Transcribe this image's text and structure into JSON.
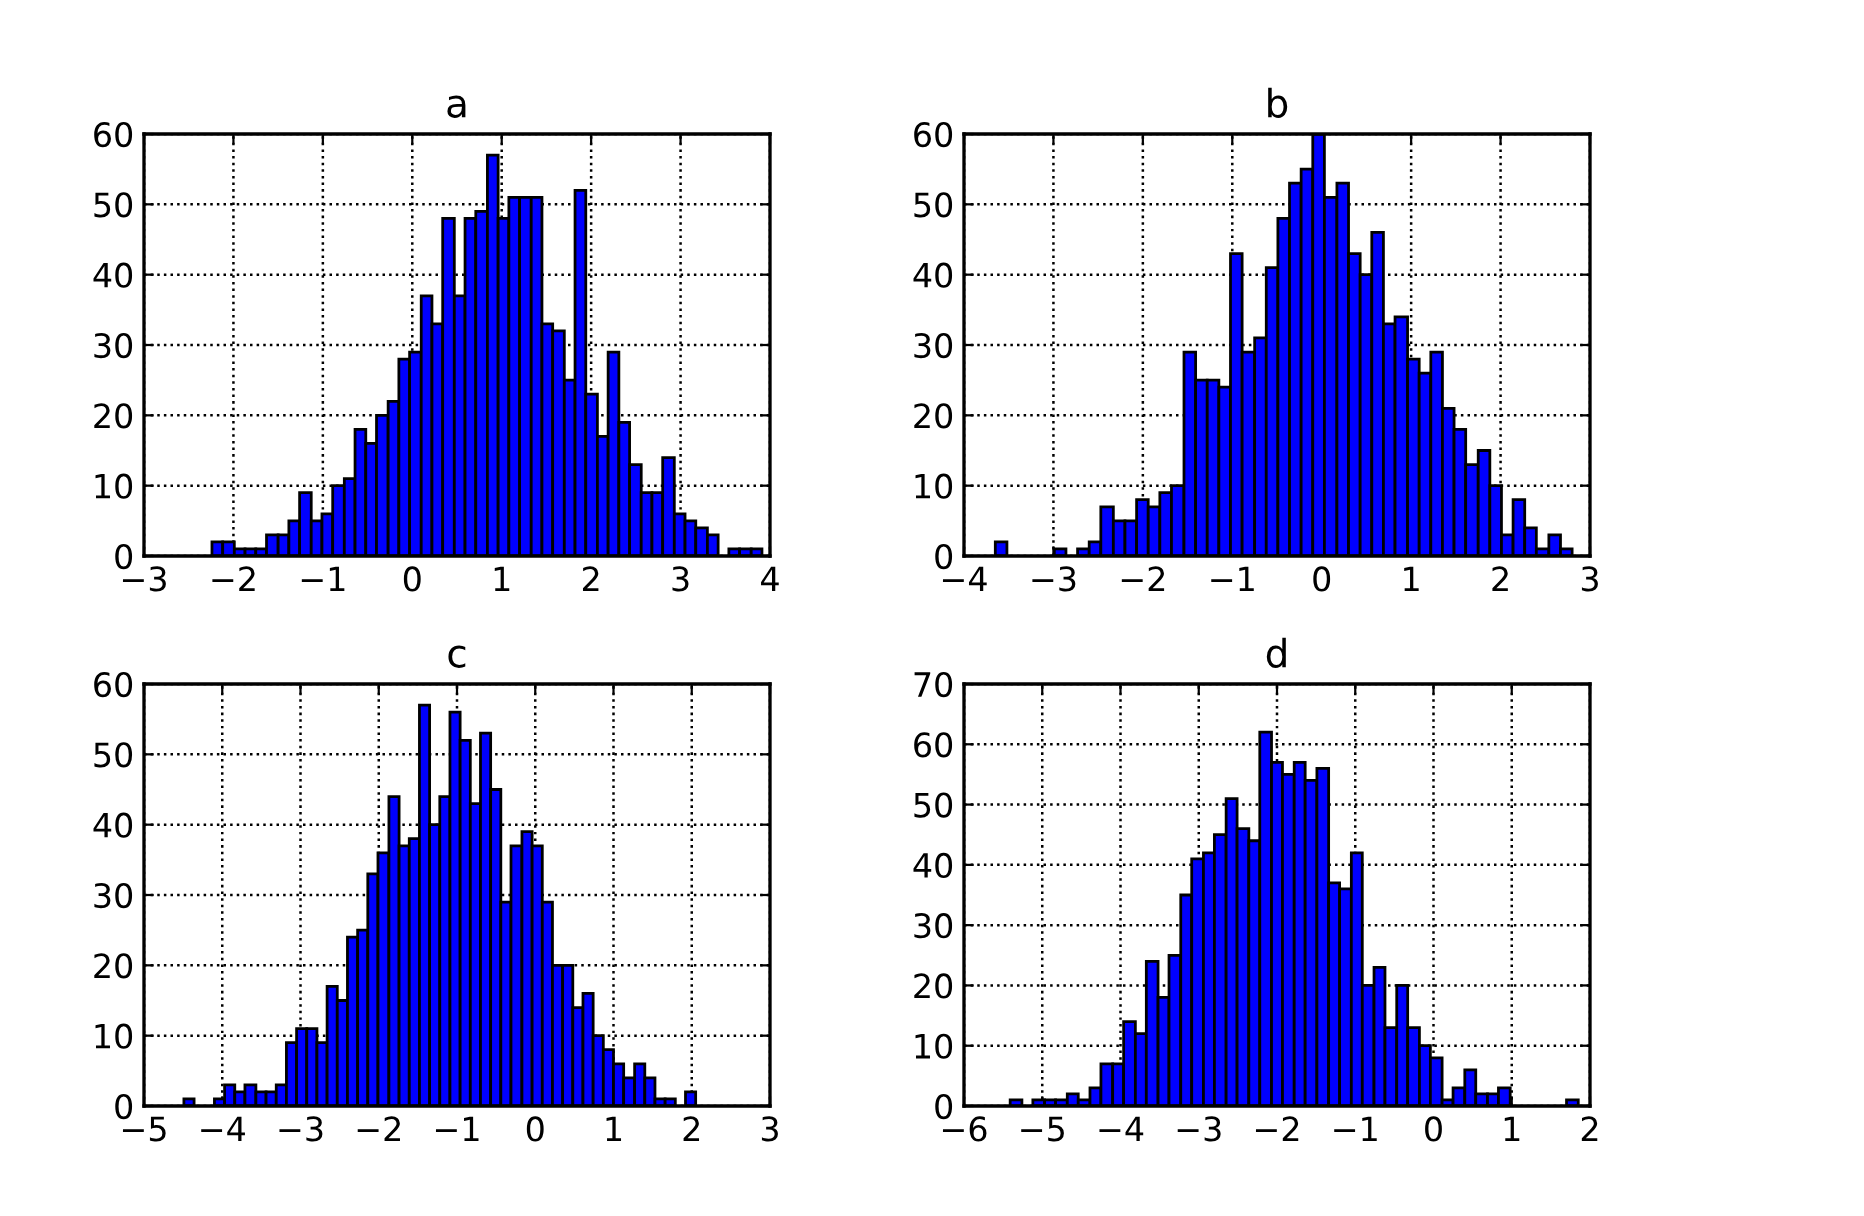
{
  "chart_data": [
    {
      "type": "histogram",
      "title": "a",
      "color": "#0000ff",
      "grid": true,
      "xlim": [
        -3,
        4
      ],
      "xticks": [
        -3,
        -2,
        -1,
        0,
        1,
        2,
        3,
        4
      ],
      "ylim": [
        0,
        60
      ],
      "yticks": [
        0,
        10,
        20,
        30,
        40,
        50,
        60
      ],
      "bins": [
        -2.24,
        -2.12,
        -1.99,
        -1.87,
        -1.75,
        -1.63,
        -1.5,
        -1.38,
        -1.26,
        -1.13,
        -1.01,
        -0.89,
        -0.76,
        -0.64,
        -0.52,
        -0.4,
        -0.27,
        -0.15,
        -0.03,
        0.1,
        0.22,
        0.34,
        0.47,
        0.59,
        0.71,
        0.84,
        0.96,
        1.08,
        1.2,
        1.33,
        1.45,
        1.57,
        1.7,
        1.82,
        1.94,
        2.07,
        2.19,
        2.31,
        2.43,
        2.56,
        2.68,
        2.8,
        2.93,
        3.05,
        3.17,
        3.3,
        3.42,
        3.54,
        3.66,
        3.79,
        3.91
      ],
      "values": [
        2,
        2,
        1,
        1,
        1,
        3,
        3,
        5,
        9,
        5,
        6,
        10,
        11,
        18,
        16,
        20,
        22,
        28,
        29,
        37,
        33,
        48,
        37,
        48,
        49,
        57,
        48,
        51,
        51,
        51,
        33,
        32,
        25,
        52,
        23,
        17,
        29,
        19,
        13,
        9,
        9,
        14,
        6,
        5,
        4,
        3,
        0,
        1,
        1,
        1
      ]
    },
    {
      "type": "histogram",
      "title": "b",
      "color": "#0000ff",
      "grid": true,
      "xlim": [
        -4,
        3
      ],
      "xticks": [
        -4,
        -3,
        -2,
        -1,
        0,
        1,
        2,
        3
      ],
      "ylim": [
        0,
        60
      ],
      "yticks": [
        0,
        10,
        20,
        30,
        40,
        50,
        60
      ],
      "bins": [
        -3.65,
        -3.52,
        -2.99,
        -2.86,
        -2.73,
        -2.6,
        -2.47,
        -2.33,
        -2.2,
        -2.07,
        -1.94,
        -1.81,
        -1.68,
        -1.54,
        -1.41,
        -1.28,
        -1.15,
        -1.02,
        -0.89,
        -0.75,
        -0.62,
        -0.49,
        -0.36,
        -0.23,
        -0.1,
        0.03,
        0.17,
        0.3,
        0.43,
        0.56,
        0.69,
        0.82,
        0.96,
        1.09,
        1.22,
        1.35,
        1.48,
        1.61,
        1.75,
        1.88,
        2.01,
        2.14,
        2.27,
        2.4,
        2.54,
        2.67,
        2.8
      ],
      "values": [
        2,
        0,
        1,
        0,
        1,
        2,
        7,
        5,
        5,
        8,
        7,
        9,
        10,
        29,
        25,
        25,
        24,
        43,
        29,
        31,
        41,
        48,
        53,
        55,
        60,
        51,
        53,
        43,
        40,
        46,
        33,
        34,
        28,
        26,
        29,
        21,
        18,
        13,
        15,
        10,
        3,
        8,
        4,
        1,
        3,
        1
      ]
    },
    {
      "type": "histogram",
      "title": "c",
      "color": "#0000ff",
      "grid": true,
      "xlim": [
        -5,
        3
      ],
      "xticks": [
        -5,
        -4,
        -3,
        -2,
        -1,
        0,
        1,
        2,
        3
      ],
      "ylim": [
        0,
        60
      ],
      "yticks": [
        0,
        10,
        20,
        30,
        40,
        50,
        60
      ],
      "bins": [
        -4.49,
        -4.36,
        -4.1,
        -3.97,
        -3.84,
        -3.71,
        -3.57,
        -3.44,
        -3.31,
        -3.18,
        -3.05,
        -2.92,
        -2.79,
        -2.66,
        -2.53,
        -2.4,
        -2.27,
        -2.14,
        -2.01,
        -1.87,
        -1.74,
        -1.61,
        -1.48,
        -1.35,
        -1.22,
        -1.09,
        -0.96,
        -0.83,
        -0.7,
        -0.57,
        -0.44,
        -0.31,
        -0.17,
        -0.04,
        0.09,
        0.22,
        0.35,
        0.48,
        0.61,
        0.74,
        0.87,
        1.0,
        1.13,
        1.27,
        1.4,
        1.53,
        1.66,
        1.79,
        1.92,
        2.05
      ],
      "values": [
        1,
        0,
        1,
        3,
        2,
        3,
        2,
        2,
        3,
        9,
        11,
        11,
        9,
        17,
        15,
        24,
        25,
        33,
        36,
        44,
        37,
        38,
        57,
        40,
        44,
        56,
        52,
        43,
        53,
        45,
        29,
        37,
        39,
        37,
        29,
        20,
        20,
        14,
        16,
        10,
        8,
        6,
        4,
        6,
        4,
        1,
        1,
        0,
        2
      ]
    },
    {
      "type": "histogram",
      "title": "d",
      "color": "#0000ff",
      "grid": true,
      "xlim": [
        -6,
        2
      ],
      "xticks": [
        -6,
        -5,
        -4,
        -3,
        -2,
        -1,
        0,
        1,
        2
      ],
      "ylim": [
        0,
        70
      ],
      "yticks": [
        0,
        10,
        20,
        30,
        40,
        50,
        60,
        70
      ],
      "bins": [
        -5.41,
        -5.26,
        -5.12,
        -4.97,
        -4.83,
        -4.68,
        -4.54,
        -4.39,
        -4.25,
        -4.1,
        -3.96,
        -3.81,
        -3.67,
        -3.52,
        -3.38,
        -3.23,
        -3.09,
        -2.94,
        -2.8,
        -2.65,
        -2.51,
        -2.36,
        -2.22,
        -2.07,
        -1.93,
        -1.78,
        -1.64,
        -1.49,
        -1.34,
        -1.2,
        -1.05,
        -0.91,
        -0.76,
        -0.62,
        -0.47,
        -0.33,
        -0.18,
        -0.04,
        0.11,
        0.25,
        0.4,
        0.54,
        0.69,
        0.83,
        0.98,
        1.7,
        1.85
      ],
      "values": [
        1,
        0,
        1,
        1,
        1,
        2,
        1,
        3,
        7,
        7,
        14,
        12,
        24,
        18,
        25,
        35,
        41,
        42,
        45,
        51,
        46,
        44,
        62,
        57,
        55,
        57,
        54,
        56,
        37,
        36,
        42,
        20,
        23,
        13,
        20,
        13,
        10,
        8,
        1,
        3,
        6,
        2,
        2,
        3,
        0,
        1
      ]
    }
  ]
}
